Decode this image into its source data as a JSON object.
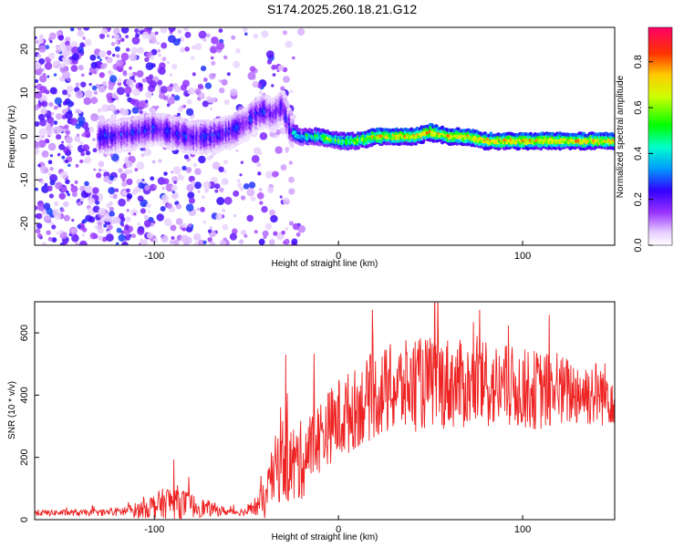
{
  "title": "S174.2025.260.18.21.G12",
  "chart_data": [
    {
      "type": "heatmap",
      "xlabel": "Height of straight line (km)",
      "ylabel": "Frequency (Hz)",
      "xlim": [
        -165,
        150
      ],
      "ylim": [
        -25,
        25
      ],
      "xticks": [
        -100,
        0,
        100
      ],
      "yticks": [
        -20,
        -10,
        0,
        10,
        20
      ],
      "colorbar": {
        "label": "Normalized spectral amplitude",
        "range": [
          0,
          0.95
        ],
        "ticks": [
          0.0,
          0.2,
          0.4,
          0.6,
          0.8
        ]
      },
      "ridge": {
        "description_points_x": [
          -125,
          -110,
          -100,
          -90,
          -80,
          -70,
          -60,
          -50,
          -45,
          -40,
          -35,
          -30,
          -25,
          -20,
          -10,
          0,
          10,
          20,
          30,
          40,
          50,
          60,
          70,
          80,
          90,
          100,
          110,
          120,
          130,
          140,
          150
        ],
        "description_points_y": [
          0,
          1,
          2,
          1,
          0,
          0,
          1,
          3,
          5,
          6,
          5,
          7,
          1,
          0,
          0,
          -1,
          -1,
          0,
          0,
          0,
          1,
          0,
          0,
          -1,
          -1,
          -1,
          -1,
          -1,
          -1,
          -1,
          -1
        ]
      },
      "grid": false
    },
    {
      "type": "line",
      "xlabel": "Height of straight line (km)",
      "ylabel": "SNR (10 * v/v)",
      "xlim": [
        -165,
        150
      ],
      "ylim": [
        0,
        700
      ],
      "xticks": [
        -100,
        0,
        100
      ],
      "yticks": [
        0,
        200,
        400,
        600
      ],
      "color": "#ee2222",
      "envelope_x": [
        -165,
        -130,
        -120,
        -110,
        -100,
        -90,
        -80,
        -70,
        -60,
        -50,
        -40,
        -35,
        -30,
        -25,
        -20,
        -15,
        -10,
        -5,
        0,
        10,
        20,
        30,
        40,
        50,
        60,
        70,
        80,
        90,
        100,
        110,
        120,
        130,
        140,
        150
      ],
      "envelope_mean": [
        22,
        22,
        25,
        30,
        45,
        60,
        45,
        35,
        25,
        25,
        60,
        150,
        200,
        170,
        190,
        230,
        270,
        300,
        320,
        360,
        400,
        420,
        430,
        440,
        440,
        430,
        430,
        425,
        420,
        415,
        410,
        410,
        405,
        405
      ],
      "envelope_amp": [
        10,
        10,
        15,
        25,
        40,
        60,
        40,
        25,
        12,
        12,
        60,
        110,
        140,
        140,
        130,
        120,
        120,
        120,
        140,
        130,
        140,
        150,
        150,
        150,
        150,
        140,
        140,
        140,
        130,
        130,
        120,
        110,
        110,
        100
      ],
      "grid": false
    }
  ]
}
